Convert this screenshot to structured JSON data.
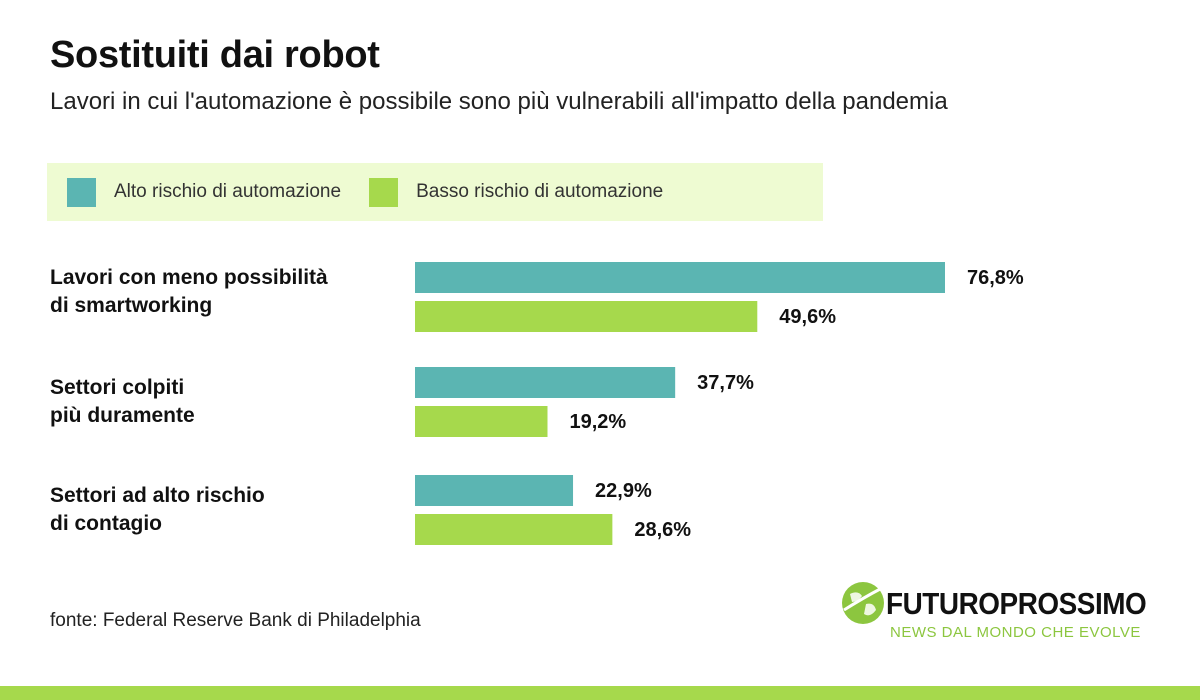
{
  "title": "Sostituiti dai robot",
  "subtitle": "Lavori in cui l'automazione è possibile sono più vulnerabili all'impatto della pandemia",
  "legend": [
    {
      "label": "Alto rischio di automazione",
      "color": "#5bb5b2"
    },
    {
      "label": "Basso rischio di automazione",
      "color": "#a6d94c"
    }
  ],
  "groups": [
    {
      "line1": "Lavori con meno possibilità",
      "line2": "di smartworking"
    },
    {
      "line1": "Settori colpiti",
      "line2": "più duramente"
    },
    {
      "line1": "Settori ad alto rischio",
      "line2": "di contagio"
    }
  ],
  "chart_data": {
    "type": "bar",
    "orientation": "horizontal",
    "title": "Sostituiti dai robot",
    "categories": [
      "Lavori con meno possibilità di smartworking",
      "Settori colpiti più duramente",
      "Settori ad alto rischio di contagio"
    ],
    "series": [
      {
        "name": "Alto rischio di automazione",
        "values": [
          76.8,
          37.7,
          22.9
        ],
        "labels": [
          "76,8%",
          "37,7%",
          "22,9%"
        ],
        "color": "#5bb5b2"
      },
      {
        "name": "Basso rischio di automazione",
        "values": [
          49.6,
          19.2,
          28.6
        ],
        "labels": [
          "49,6%",
          "19,2%",
          "28,6%"
        ],
        "color": "#a6d94c"
      }
    ],
    "xlim": [
      0,
      100
    ],
    "grid": false,
    "legend_position": "top-left"
  },
  "source": "fonte: Federal Reserve Bank di Philadelphia",
  "logo": {
    "name": "FUTUROPROSSIMO",
    "tagline": "NEWS DAL MONDO CHE EVOLVE",
    "accent": "#8cc63f"
  }
}
